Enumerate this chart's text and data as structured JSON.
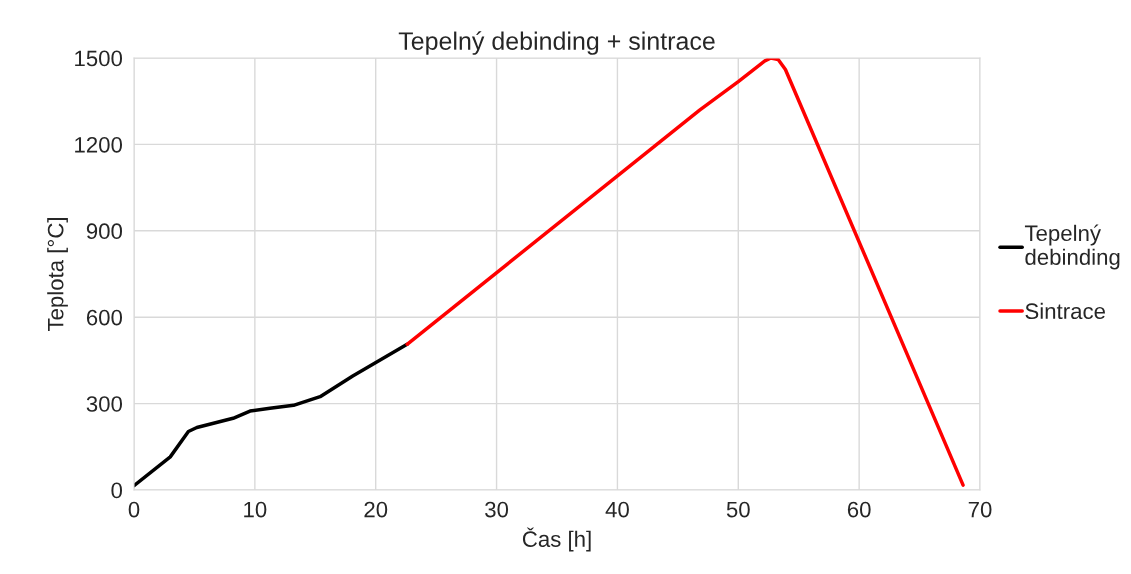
{
  "chart_data": {
    "type": "line",
    "title": "Tepelný debinding + sintrace",
    "xlabel": "Čas [h]",
    "ylabel": "Teplota [°C]",
    "xlim": [
      0,
      70
    ],
    "xticks": [
      0,
      10,
      20,
      30,
      40,
      50,
      60,
      70
    ],
    "ylim": [
      0,
      1500
    ],
    "yticks": [
      0,
      300,
      600,
      900,
      1200,
      1500
    ],
    "grid": true,
    "legend": "right",
    "line_style": "solid",
    "marker": "none",
    "series": [
      {
        "name": "Tepelný\ndebinding",
        "color": "#000000",
        "x": [
          0,
          3,
          4.5,
          5.2,
          8.2,
          9.6,
          11.25,
          13.2,
          15.4,
          18.1,
          22.6
        ],
        "values": [
          15,
          115,
          203,
          217,
          249,
          274,
          284,
          294,
          324,
          396,
          506
        ]
      },
      {
        "name": "Sintrace",
        "color": "#ff0000",
        "x": [
          22.6,
          46.8,
          50,
          52.2,
          52.7,
          53.3,
          53.9,
          68.6
        ],
        "values": [
          506,
          1319,
          1418,
          1490,
          1500,
          1495,
          1460,
          17
        ]
      }
    ]
  }
}
